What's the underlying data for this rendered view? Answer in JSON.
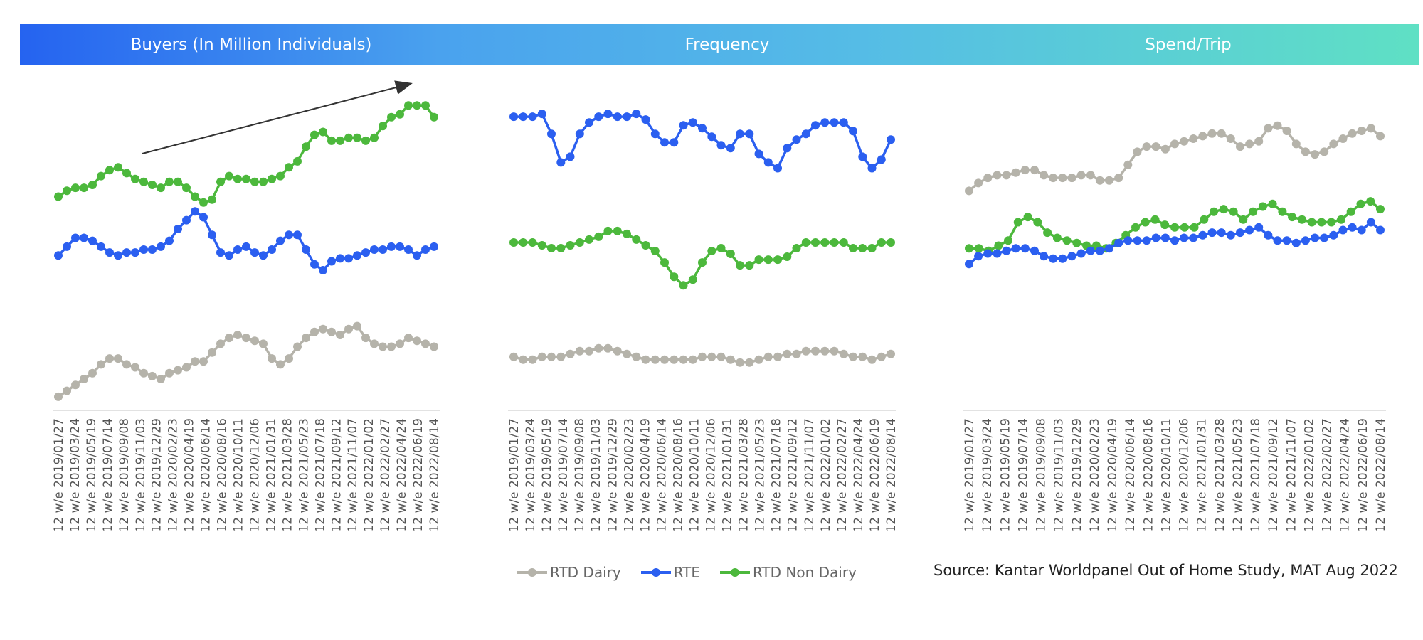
{
  "header": {
    "titles": [
      "Buyers (In Million Individuals)",
      "Frequency",
      "Spend/Trip"
    ],
    "gradient_colors": [
      "#2563f0",
      "#5fe0c4"
    ]
  },
  "colors": {
    "RTD Dairy": "#b5b3aa",
    "RTE": "#2b5ff0",
    "RTD Non Dairy": "#4cb83c",
    "arrow": "#333333"
  },
  "legend": [
    "RTD Dairy",
    "RTE",
    "RTD Non Dairy"
  ],
  "source": "Source: Kantar Worldpanel Out of Home Study, MAT Aug 2022",
  "chart_data": [
    {
      "type": "line",
      "title": "Buyers (In Million Individuals)",
      "x_tick_labels": [
        "12 w/e 2019/01/27",
        "12 w/e 2019/03/24",
        "12 w/e 2019/05/19",
        "12 w/e 2019/07/14",
        "12 w/e 2019/09/08",
        "12 w/e 2019/11/03",
        "12 w/e 2019/12/29",
        "12 w/e 2020/02/23",
        "12 w/e 2020/04/19",
        "12 w/e 2020/06/14",
        "12 w/e 2020/08/16",
        "12 w/e 2020/10/11",
        "12 w/e 2020/12/06",
        "12 w/e 2021/01/31",
        "12 w/e 2021/03/28",
        "12 w/e 2021/05/23",
        "12 w/e 2021/07/18",
        "12 w/e 2021/09/12",
        "12 w/e 2021/11/07",
        "12 w/e 2022/01/02",
        "12 w/e 2022/02/27",
        "12 w/e 2022/04/24",
        "12 w/e 2022/06/19",
        "12 w/e 2022/08/14"
      ],
      "axis_values_shown": false,
      "trend_arrow": true,
      "series": [
        {
          "name": "RTD Non Dairy",
          "values": [
            5.3,
            5.5,
            5.6,
            5.6,
            5.7,
            6.0,
            6.2,
            6.3,
            6.1,
            5.9,
            5.8,
            5.7,
            5.6,
            5.8,
            5.8,
            5.6,
            5.3,
            5.1,
            5.2,
            5.8,
            6.0,
            5.9,
            5.9,
            5.8,
            5.8,
            5.9,
            6.0,
            6.3,
            6.5,
            7.0,
            7.4,
            7.5,
            7.2,
            7.2,
            7.3,
            7.3,
            7.2,
            7.3,
            7.7,
            8.0,
            8.1,
            8.4,
            8.4,
            8.4,
            8.0
          ]
        },
        {
          "name": "RTE",
          "values": [
            3.3,
            3.6,
            3.9,
            3.9,
            3.8,
            3.6,
            3.4,
            3.3,
            3.4,
            3.4,
            3.5,
            3.5,
            3.6,
            3.8,
            4.2,
            4.5,
            4.8,
            4.6,
            4.0,
            3.4,
            3.3,
            3.5,
            3.6,
            3.4,
            3.3,
            3.5,
            3.8,
            4.0,
            4.0,
            3.5,
            3.0,
            2.8,
            3.1,
            3.2,
            3.2,
            3.3,
            3.4,
            3.5,
            3.5,
            3.6,
            3.6,
            3.5,
            3.3,
            3.5,
            3.6
          ]
        },
        {
          "name": "RTD Dairy",
          "values": [
            -1.5,
            -1.3,
            -1.1,
            -0.9,
            -0.7,
            -0.4,
            -0.2,
            -0.2,
            -0.4,
            -0.5,
            -0.7,
            -0.8,
            -0.9,
            -0.7,
            -0.6,
            -0.5,
            -0.3,
            -0.3,
            0.0,
            0.3,
            0.5,
            0.6,
            0.5,
            0.4,
            0.3,
            -0.2,
            -0.4,
            -0.2,
            0.2,
            0.5,
            0.7,
            0.8,
            0.7,
            0.6,
            0.8,
            0.9,
            0.5,
            0.3,
            0.2,
            0.2,
            0.3,
            0.5,
            0.4,
            0.3,
            0.2
          ]
        }
      ]
    },
    {
      "type": "line",
      "title": "Frequency",
      "x_tick_labels": [
        "12 w/e 2019/01/27",
        "12 w/e 2019/03/24",
        "12 w/e 2019/05/19",
        "12 w/e 2019/07/14",
        "12 w/e 2019/09/08",
        "12 w/e 2019/11/03",
        "12 w/e 2019/12/29",
        "12 w/e 2020/02/23",
        "12 w/e 2020/04/19",
        "12 w/e 2020/06/14",
        "12 w/e 2020/08/16",
        "12 w/e 2020/10/11",
        "12 w/e 2020/12/06",
        "12 w/e 2021/01/31",
        "12 w/e 2021/03/28",
        "12 w/e 2021/05/23",
        "12 w/e 2021/07/18",
        "12 w/e 2021/09/12",
        "12 w/e 2021/11/07",
        "12 w/e 2022/01/02",
        "12 w/e 2022/02/27",
        "12 w/e 2022/04/24",
        "12 w/e 2022/06/19",
        "12 w/e 2022/08/14"
      ],
      "axis_values_shown": false,
      "series": [
        {
          "name": "RTE",
          "values": [
            8.4,
            8.4,
            8.4,
            8.5,
            7.8,
            6.8,
            7.0,
            7.8,
            8.2,
            8.4,
            8.5,
            8.4,
            8.4,
            8.5,
            8.3,
            7.8,
            7.5,
            7.5,
            8.1,
            8.2,
            8.0,
            7.7,
            7.4,
            7.3,
            7.8,
            7.8,
            7.1,
            6.8,
            6.6,
            7.3,
            7.6,
            7.8,
            8.1,
            8.2,
            8.2,
            8.2,
            7.9,
            7.0,
            6.6,
            6.9,
            7.6
          ]
        },
        {
          "name": "RTD Non Dairy",
          "values": [
            4.0,
            4.0,
            4.0,
            3.9,
            3.8,
            3.8,
            3.9,
            4.0,
            4.1,
            4.2,
            4.4,
            4.4,
            4.3,
            4.1,
            3.9,
            3.7,
            3.3,
            2.8,
            2.5,
            2.7,
            3.3,
            3.7,
            3.8,
            3.6,
            3.2,
            3.2,
            3.4,
            3.4,
            3.4,
            3.5,
            3.8,
            4.0,
            4.0,
            4.0,
            4.0,
            4.0,
            3.8,
            3.8,
            3.8,
            4.0,
            4.0
          ]
        },
        {
          "name": "RTD Dairy",
          "values": [
            0.0,
            -0.1,
            -0.1,
            0.0,
            0.0,
            0.0,
            0.1,
            0.2,
            0.2,
            0.3,
            0.3,
            0.2,
            0.1,
            0.0,
            -0.1,
            -0.1,
            -0.1,
            -0.1,
            -0.1,
            -0.1,
            0.0,
            0.0,
            0.0,
            -0.1,
            -0.2,
            -0.2,
            -0.1,
            0.0,
            0.0,
            0.1,
            0.1,
            0.2,
            0.2,
            0.2,
            0.2,
            0.1,
            0.0,
            0.0,
            -0.1,
            0.0,
            0.1
          ]
        }
      ]
    },
    {
      "type": "line",
      "title": "Spend/Trip",
      "x_tick_labels": [
        "12 w/e 2019/01/27",
        "12 w/e 2019/03/24",
        "12 w/e 2019/05/19",
        "12 w/e 2019/07/14",
        "12 w/e 2019/09/08",
        "12 w/e 2019/11/03",
        "12 w/e 2019/12/29",
        "12 w/e 2020/02/23",
        "12 w/e 2020/04/19",
        "12 w/e 2020/06/14",
        "12 w/e 2020/08/16",
        "12 w/e 2020/10/11",
        "12 w/e 2020/12/06",
        "12 w/e 2021/01/31",
        "12 w/e 2021/03/28",
        "12 w/e 2021/05/23",
        "12 w/e 2021/07/18",
        "12 w/e 2021/09/12",
        "12 w/e 2021/11/07",
        "12 w/e 2022/01/02",
        "12 w/e 2022/02/27",
        "12 w/e 2022/04/24",
        "12 w/e 2022/06/19",
        "12 w/e 2022/08/14"
      ],
      "axis_values_shown": false,
      "series": [
        {
          "name": "RTD Dairy",
          "values": [
            6.0,
            6.3,
            6.5,
            6.6,
            6.6,
            6.7,
            6.8,
            6.8,
            6.6,
            6.5,
            6.5,
            6.5,
            6.6,
            6.6,
            6.4,
            6.4,
            6.5,
            7.0,
            7.5,
            7.7,
            7.7,
            7.6,
            7.8,
            7.9,
            8.0,
            8.1,
            8.2,
            8.2,
            8.0,
            7.7,
            7.8,
            7.9,
            8.4,
            8.5,
            8.3,
            7.8,
            7.5,
            7.4,
            7.5,
            7.8,
            8.0,
            8.2,
            8.3,
            8.4,
            8.1
          ]
        },
        {
          "name": "RTD Non Dairy",
          "values": [
            3.8,
            3.8,
            3.7,
            3.9,
            4.1,
            4.8,
            5.0,
            4.8,
            4.4,
            4.2,
            4.1,
            4.0,
            3.9,
            3.9,
            3.8,
            4.0,
            4.3,
            4.6,
            4.8,
            4.9,
            4.7,
            4.6,
            4.6,
            4.6,
            4.9,
            5.2,
            5.3,
            5.2,
            4.9,
            5.2,
            5.4,
            5.5,
            5.2,
            5.0,
            4.9,
            4.8,
            4.8,
            4.8,
            4.9,
            5.2,
            5.5,
            5.6,
            5.3
          ]
        },
        {
          "name": "RTE",
          "values": [
            3.2,
            3.5,
            3.6,
            3.6,
            3.7,
            3.8,
            3.8,
            3.7,
            3.5,
            3.4,
            3.4,
            3.5,
            3.6,
            3.7,
            3.7,
            3.8,
            4.0,
            4.1,
            4.1,
            4.1,
            4.2,
            4.2,
            4.1,
            4.2,
            4.2,
            4.3,
            4.4,
            4.4,
            4.3,
            4.4,
            4.5,
            4.6,
            4.3,
            4.1,
            4.1,
            4.0,
            4.1,
            4.2,
            4.2,
            4.3,
            4.5,
            4.6,
            4.5,
            4.8,
            4.5
          ]
        }
      ]
    }
  ]
}
